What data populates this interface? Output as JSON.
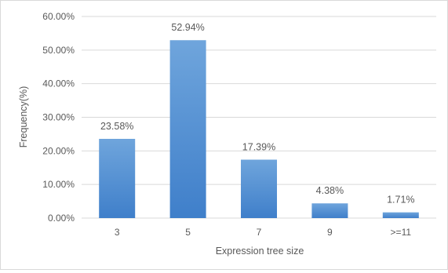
{
  "chart_data": {
    "type": "bar",
    "categories": [
      "3",
      "5",
      "7",
      "9",
      ">=11"
    ],
    "values": [
      23.58,
      52.94,
      17.39,
      4.38,
      1.71
    ],
    "data_labels": [
      "23.58%",
      "52.94%",
      "17.39%",
      "4.38%",
      "1.71%"
    ],
    "xlabel": "Expression tree size",
    "ylabel": "Frequency(%)",
    "ylim": [
      0,
      60
    ],
    "yticks": [
      0,
      10,
      20,
      30,
      40,
      50,
      60
    ],
    "ytick_labels": [
      "0.00%",
      "10.00%",
      "20.00%",
      "30.00%",
      "40.00%",
      "50.00%",
      "60.00%"
    ],
    "grid": true,
    "legend": "none",
    "colors": {
      "bar_top": "#6fa5dc",
      "bar_bottom": "#3f7fca",
      "grid": "#d9d9d9",
      "text": "#595959"
    }
  }
}
